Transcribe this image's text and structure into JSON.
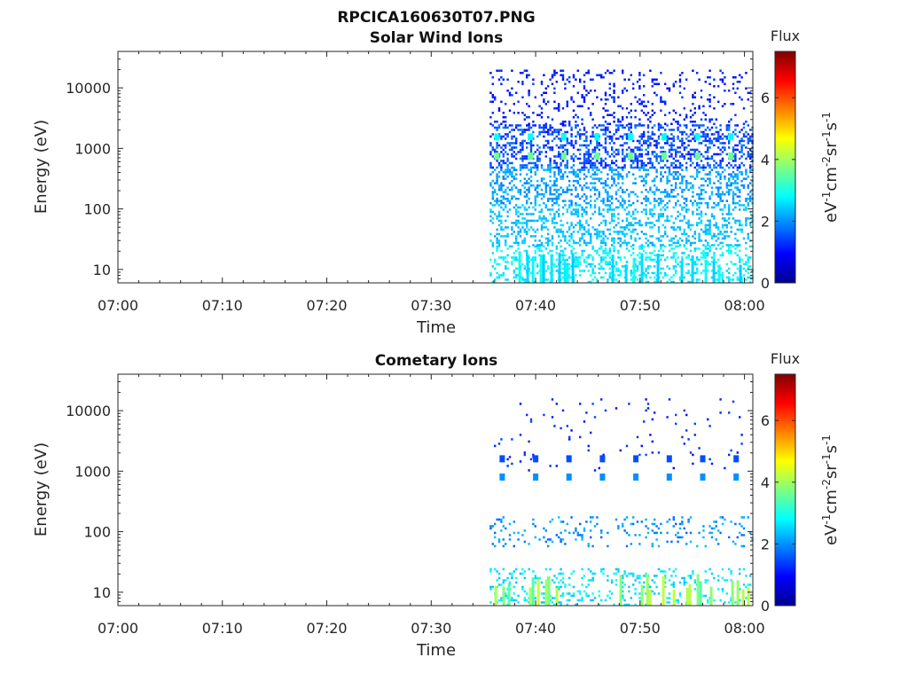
{
  "figure": {
    "filename": "RPCICA160630T07.PNG"
  },
  "colorscale": {
    "name": "jet",
    "stops": [
      "#00008f",
      "#0000ff",
      "#0080ff",
      "#00ffff",
      "#80ff80",
      "#ffff00",
      "#ff8000",
      "#ff0000",
      "#800000"
    ]
  },
  "chart_data": [
    {
      "type": "heatmap",
      "title": "Solar Wind Ions",
      "xlabel": "Time",
      "ylabel": "Energy (eV)",
      "x_ticks": [
        "07:00",
        "07:10",
        "07:20",
        "07:30",
        "07:40",
        "07:50",
        "08:00"
      ],
      "x_range_minutes": [
        0,
        60.8
      ],
      "y_scale": "log",
      "y_ticks": [
        10,
        100,
        1000,
        10000
      ],
      "y_tick_labels": [
        "10",
        "100",
        "1000",
        "10000"
      ],
      "ylim": [
        6,
        40000
      ],
      "data_start_time": "07:35",
      "colorbar": {
        "label": "Flux",
        "unit": "eV-1cm-2sr-1s-1",
        "range": [
          0,
          7.5
        ],
        "ticks": [
          0,
          2,
          4,
          6
        ]
      },
      "bands": [
        {
          "e_min": 6,
          "e_max": 25,
          "density": 0.3,
          "level_range": [
            2.4,
            3.0
          ]
        },
        {
          "e_min": 25,
          "e_max": 120,
          "density": 0.3,
          "level_range": [
            2.1,
            2.6
          ]
        },
        {
          "e_min": 120,
          "e_max": 500,
          "density": 0.33,
          "level_range": [
            1.8,
            2.4
          ]
        },
        {
          "e_min": 500,
          "e_max": 2500,
          "density": 0.38,
          "level_range": [
            1.0,
            1.9
          ]
        },
        {
          "e_min": 2500,
          "e_max": 20000,
          "density": 0.13,
          "level_range": [
            0.9,
            1.4
          ]
        }
      ],
      "spot_times_min": [
        36.3,
        39.5,
        42.7,
        45.9,
        49.1,
        52.3,
        55.5,
        58.7
      ],
      "spots": [
        {
          "energy": 750,
          "level": 3.6
        },
        {
          "energy": 1550,
          "level": 2.8
        }
      ],
      "streak_level_range": [
        2.4,
        3.0
      ]
    },
    {
      "type": "heatmap",
      "title": "Cometary Ions",
      "xlabel": "Time",
      "ylabel": "Energy (eV)",
      "x_ticks": [
        "07:00",
        "07:10",
        "07:20",
        "07:30",
        "07:40",
        "07:50",
        "08:00"
      ],
      "x_range_minutes": [
        0,
        60.8
      ],
      "y_scale": "log",
      "y_ticks": [
        10,
        100,
        1000,
        10000
      ],
      "y_tick_labels": [
        "10",
        "100",
        "1000",
        "10000"
      ],
      "ylim": [
        6,
        40000
      ],
      "data_start_time": "07:35",
      "colorbar": {
        "label": "Flux",
        "unit": "eV-1cm-2sr-1s-1",
        "range": [
          0,
          7.5
        ],
        "ticks": [
          0,
          2,
          4,
          6
        ]
      },
      "bands": [
        {
          "e_min": 6,
          "e_max": 25,
          "density": 0.16,
          "level_range": [
            2.3,
            2.9
          ]
        },
        {
          "e_min": 60,
          "e_max": 180,
          "density": 0.1,
          "level_range": [
            1.6,
            2.4
          ]
        },
        {
          "e_min": 1000,
          "e_max": 16000,
          "density": 0.02,
          "level_range": [
            1.0,
            1.5
          ]
        }
      ],
      "spot_times_min": [
        36.8,
        40.0,
        43.2,
        46.4,
        49.6,
        52.8,
        56.0,
        59.2
      ],
      "spots": [
        {
          "energy": 800,
          "level": 2.0
        },
        {
          "energy": 1600,
          "level": 1.5
        }
      ],
      "streak_level_range": [
        3.4,
        4.4
      ]
    }
  ]
}
